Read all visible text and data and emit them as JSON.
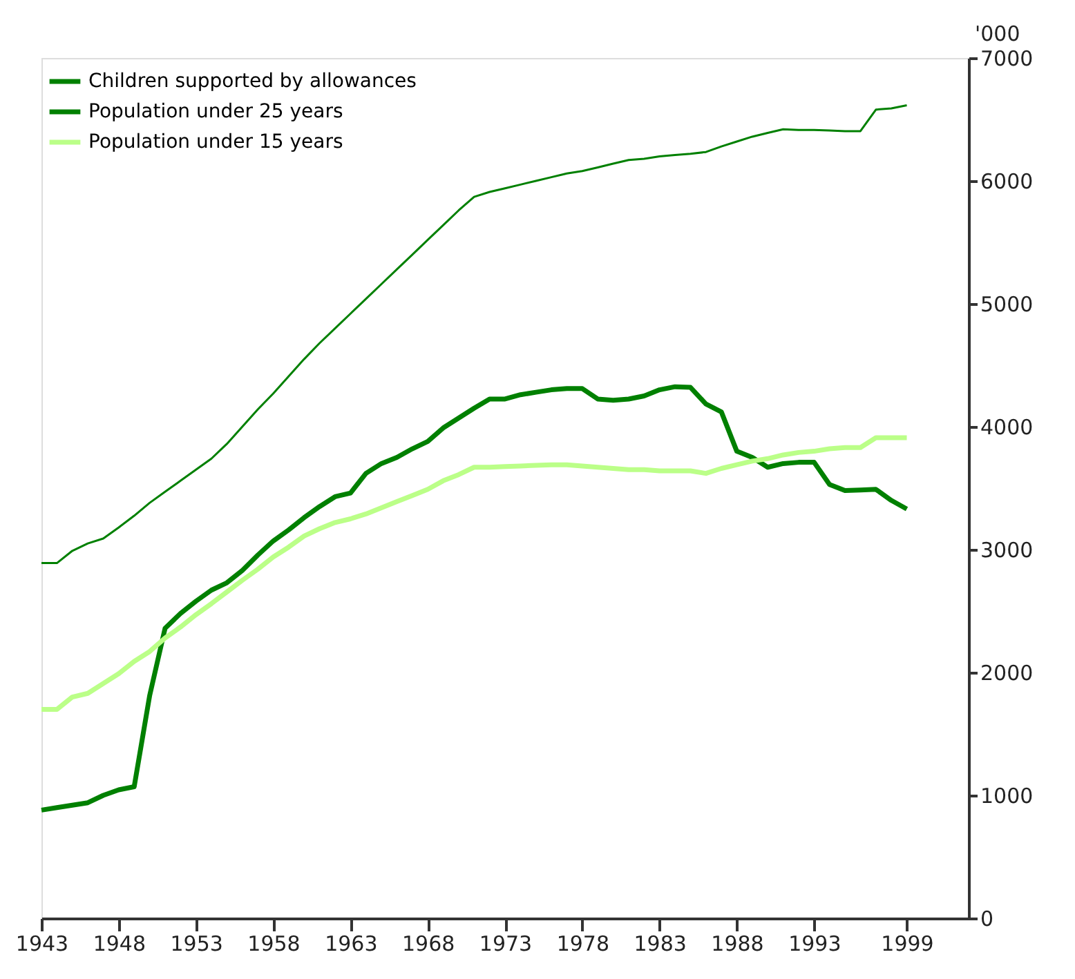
{
  "chart_data": {
    "type": "line",
    "ylabel": "'000",
    "x": [
      1943,
      1944,
      1945,
      1946,
      1947,
      1948,
      1949,
      1950,
      1951,
      1952,
      1953,
      1954,
      1955,
      1956,
      1957,
      1958,
      1959,
      1960,
      1961,
      1962,
      1963,
      1964,
      1965,
      1966,
      1967,
      1968,
      1969,
      1970,
      1971,
      1972,
      1973,
      1974,
      1975,
      1976,
      1977,
      1978,
      1979,
      1980,
      1981,
      1982,
      1983,
      1984,
      1985,
      1986,
      1987,
      1988,
      1989,
      1990,
      1991,
      1992,
      1993,
      1994,
      1995,
      1996,
      1997,
      1998,
      1999
    ],
    "series": [
      {
        "name": "Children supported by allowances",
        "color": "#008000",
        "values": [
          880,
          900,
          920,
          940,
          1000,
          1045,
          1070,
          1810,
          2360,
          2480,
          2580,
          2670,
          2730,
          2830,
          2955,
          3070,
          3160,
          3260,
          3350,
          3430,
          3460,
          3620,
          3700,
          3750,
          3820,
          3880,
          3990,
          4070,
          4150,
          4225,
          4225,
          4260,
          4280,
          4300,
          4310,
          4310,
          4225,
          4215,
          4225,
          4250,
          4300,
          4325,
          4320,
          4185,
          4120,
          3800,
          3750,
          3670,
          3700,
          3710,
          3710,
          3530,
          3480,
          3485,
          3490,
          3400,
          3330
        ]
      },
      {
        "name": "Population under 25 years",
        "color": "#008000",
        "values": [
          2890,
          2890,
          2990,
          3050,
          3090,
          3180,
          3275,
          3380,
          3470,
          3560,
          3650,
          3740,
          3860,
          4000,
          4140,
          4270,
          4410,
          4550,
          4680,
          4800,
          4920,
          5040,
          5160,
          5280,
          5400,
          5520,
          5640,
          5760,
          5870,
          5910,
          5940,
          5970,
          6000,
          6030,
          6060,
          6080,
          6110,
          6140,
          6170,
          6180,
          6200,
          6210,
          6220,
          6235,
          6280,
          6320,
          6360,
          6390,
          6420,
          6415,
          6415,
          6410,
          6405,
          6405,
          6580,
          6590,
          6615
        ]
      },
      {
        "name": "Population under 15 years",
        "color": "#bbff88",
        "values": [
          1700,
          1700,
          1800,
          1830,
          1910,
          1990,
          2090,
          2170,
          2280,
          2370,
          2470,
          2560,
          2655,
          2750,
          2840,
          2940,
          3020,
          3110,
          3170,
          3220,
          3250,
          3290,
          3340,
          3390,
          3440,
          3490,
          3560,
          3610,
          3670,
          3670,
          3675,
          3680,
          3685,
          3690,
          3690,
          3680,
          3670,
          3660,
          3650,
          3650,
          3640,
          3640,
          3640,
          3620,
          3660,
          3690,
          3720,
          3740,
          3770,
          3790,
          3800,
          3820,
          3830,
          3830,
          3910,
          3910,
          3910
        ]
      }
    ],
    "xlim": [
      1943,
      2003
    ],
    "xticks": [
      1943,
      1948,
      1953,
      1958,
      1963,
      1968,
      1973,
      1978,
      1983,
      1988,
      1993,
      1999
    ],
    "ylim": [
      0,
      7000
    ],
    "yticks": [
      0,
      1000,
      2000,
      3000,
      4000,
      5000,
      6000,
      7000
    ],
    "grid": false,
    "legend": "top left"
  }
}
